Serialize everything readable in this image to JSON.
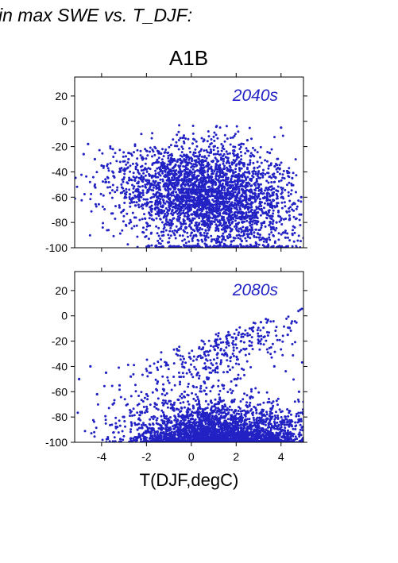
{
  "figure": {
    "heading": "in max SWE vs. T_DJF:",
    "scenario": "A1B",
    "xlabel": "T(DJF,degC)"
  },
  "colors": {
    "points": "#2222c4",
    "axes": "#000000",
    "background": "#ffffff"
  },
  "chart_data": [
    {
      "type": "scatter",
      "panel_label": "2040s",
      "xlim": [
        -5.2,
        5.0
      ],
      "ylim": [
        -100,
        35
      ],
      "yticks": [
        20,
        0,
        -20,
        -40,
        -60,
        -80,
        -100
      ],
      "xticks": [
        -4,
        -2,
        0,
        2,
        4
      ],
      "show_xtick_labels": false,
      "grid": false,
      "point_count_approx": 3500,
      "cloud_description": "dense cloud, center near T=1, y=-60; upper edge rises from about -20 at T=-4 to about 5 at T=4.5; lower bound -100",
      "points": [
        [
          -4.8,
          -26
        ],
        [
          -4.6,
          -18
        ],
        [
          -4.3,
          -30
        ],
        [
          -4.0,
          -35
        ],
        [
          -3.8,
          -48
        ],
        [
          -3.5,
          -22
        ],
        [
          -3.2,
          -40
        ],
        [
          -3.0,
          -55
        ],
        [
          -2.8,
          -30
        ],
        [
          -2.5,
          -45
        ],
        [
          -2.3,
          -60
        ],
        [
          -2.0,
          -38
        ],
        [
          -1.8,
          -70
        ],
        [
          -1.5,
          -50
        ],
        [
          -1.2,
          -82
        ],
        [
          -1.0,
          -45
        ],
        [
          -0.8,
          -65
        ],
        [
          -0.5,
          -30
        ],
        [
          -0.3,
          -75
        ],
        [
          0.0,
          -55
        ],
        [
          0.2,
          -90
        ],
        [
          0.5,
          -40
        ],
        [
          0.8,
          -68
        ],
        [
          1.0,
          -20
        ],
        [
          1.2,
          -85
        ],
        [
          1.5,
          -58
        ],
        [
          1.8,
          -95
        ],
        [
          2.0,
          -35
        ],
        [
          2.2,
          -72
        ],
        [
          2.5,
          -15
        ],
        [
          2.8,
          -88
        ],
        [
          3.0,
          -50
        ],
        [
          3.2,
          -98
        ],
        [
          3.5,
          -25
        ],
        [
          3.8,
          -80
        ],
        [
          4.0,
          -5
        ],
        [
          4.2,
          -92
        ],
        [
          4.5,
          -45
        ],
        [
          4.7,
          -100
        ],
        [
          4.9,
          -60
        ]
      ]
    },
    {
      "type": "scatter",
      "panel_label": "2080s",
      "xlim": [
        -5.2,
        5.0
      ],
      "ylim": [
        -100,
        35
      ],
      "yticks": [
        20,
        0,
        -20,
        -40,
        -60,
        -80,
        -100
      ],
      "xticks": [
        -4,
        -2,
        0,
        2,
        4
      ],
      "xtick_labels": [
        "-4",
        "-2",
        "0",
        "2",
        "4"
      ],
      "grid": false,
      "point_count_approx": 3500,
      "cloud_description": "cloud concentrated near the bottom (-85 to -100), centered around T=1.5; upper edge rises from about -40 at T=-4 to about 0 at T=3",
      "points": [
        [
          -5.0,
          -50
        ],
        [
          -4.5,
          -40
        ],
        [
          -4.2,
          -62
        ],
        [
          -3.8,
          -45
        ],
        [
          -3.5,
          -70
        ],
        [
          -3.2,
          -55
        ],
        [
          -3.0,
          -80
        ],
        [
          -2.7,
          -48
        ],
        [
          -2.4,
          -90
        ],
        [
          -2.0,
          -62
        ],
        [
          -1.8,
          -95
        ],
        [
          -1.5,
          -52
        ],
        [
          -1.2,
          -85
        ],
        [
          -0.9,
          -70
        ],
        [
          -0.6,
          -98
        ],
        [
          -0.3,
          -60
        ],
        [
          0.0,
          -88
        ],
        [
          0.3,
          -45
        ],
        [
          0.6,
          -96
        ],
        [
          0.9,
          -75
        ],
        [
          1.2,
          -100
        ],
        [
          1.5,
          -30
        ],
        [
          1.8,
          -92
        ],
        [
          2.0,
          -55
        ],
        [
          2.3,
          -100
        ],
        [
          2.6,
          -20
        ],
        [
          2.9,
          -90
        ],
        [
          3.1,
          -5
        ],
        [
          3.4,
          -98
        ],
        [
          3.7,
          -40
        ],
        [
          4.0,
          -85
        ],
        [
          4.3,
          -15
        ],
        [
          4.6,
          -100
        ],
        [
          4.8,
          -60
        ]
      ]
    }
  ]
}
